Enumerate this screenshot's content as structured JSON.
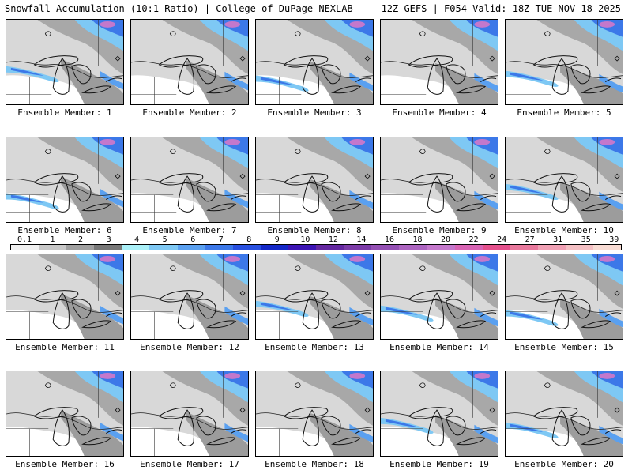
{
  "header": {
    "title_left": "Snowfall Accumulation (10:1 Ratio) | College of DuPage NEXLAB",
    "title_right": "12Z GEFS | F054 Valid: 18Z TUE NOV 18 2025"
  },
  "colorbar": {
    "tick_labels": [
      "0.1",
      "1",
      "2",
      "3",
      "4",
      "5",
      "6",
      "7",
      "8",
      "9",
      "10",
      "12",
      "14",
      "16",
      "18",
      "20",
      "22",
      "24",
      "27",
      "31",
      "35",
      "39"
    ],
    "colors": [
      "#f0f0f0",
      "#c8c8c8",
      "#a0a0a0",
      "#787878",
      "#aaf0f8",
      "#7ec8f4",
      "#5aa0f0",
      "#3c78e8",
      "#2850e0",
      "#1428c8",
      "#3c14b4",
      "#6428a0",
      "#7c3ca8",
      "#9450b4",
      "#ac64c0",
      "#c478cc",
      "#d864b4",
      "#e4508c",
      "#e8789c",
      "#f0a0b4",
      "#f4c0c4",
      "#f8dcd4"
    ]
  },
  "panels": [
    {
      "label": "Ensemble Member: 1"
    },
    {
      "label": "Ensemble Member: 2"
    },
    {
      "label": "Ensemble Member: 3"
    },
    {
      "label": "Ensemble Member: 4"
    },
    {
      "label": "Ensemble Member: 5"
    },
    {
      "label": "Ensemble Member: 6"
    },
    {
      "label": "Ensemble Member: 7"
    },
    {
      "label": "Ensemble Member: 8"
    },
    {
      "label": "Ensemble Member: 9"
    },
    {
      "label": "Ensemble Member: 10"
    },
    {
      "label": "Ensemble Member: 11"
    },
    {
      "label": "Ensemble Member: 12"
    },
    {
      "label": "Ensemble Member: 13"
    },
    {
      "label": "Ensemble Member: 14"
    },
    {
      "label": "Ensemble Member: 15"
    },
    {
      "label": "Ensemble Member: 16"
    },
    {
      "label": "Ensemble Member: 17"
    },
    {
      "label": "Ensemble Member: 18"
    },
    {
      "label": "Ensemble Member: 19"
    },
    {
      "label": "Ensemble Member: 20"
    }
  ]
}
